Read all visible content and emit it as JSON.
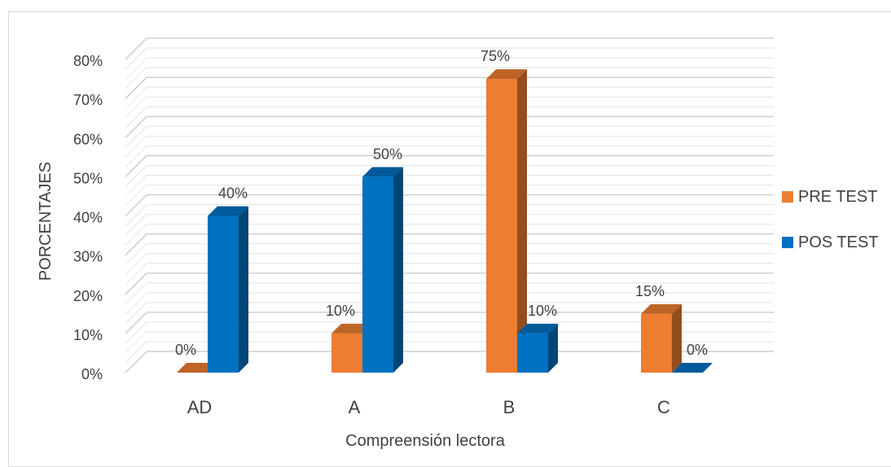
{
  "chart_data": {
    "type": "bar",
    "categories": [
      "AD",
      "A",
      "B",
      "C"
    ],
    "series": [
      {
        "name": "PRE TEST",
        "values": [
          0,
          10,
          75,
          15
        ],
        "labels": [
          "0%",
          "10%",
          "75%",
          "15%"
        ],
        "color": "#ED7D31"
      },
      {
        "name": "POS TEST",
        "values": [
          40,
          50,
          10,
          0
        ],
        "labels": [
          "40%",
          "50%",
          "10%",
          "0%"
        ],
        "color": "#0070C0"
      }
    ],
    "xlabel": "Compreensión lectora",
    "ylabel": "PORCENTAJES",
    "ylim": [
      0,
      80
    ],
    "yticks": [
      "0%",
      "10%",
      "20%",
      "30%",
      "40%",
      "50%",
      "60%",
      "70%",
      "80%"
    ],
    "grid": true,
    "style": "3d-column",
    "legend_position": "right"
  }
}
